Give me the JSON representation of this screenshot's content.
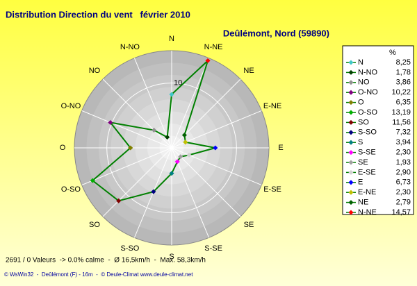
{
  "chart_data": {
    "type": "radar",
    "title": "Distribution Direction du vent   février 2010",
    "subtitle": "Deûlémont, Nord (59890)",
    "legend_header": "%",
    "categories": [
      "N",
      "N-NO",
      "NO",
      "O-NO",
      "O",
      "O-SO",
      "SO",
      "S-SO",
      "S",
      "S-SE",
      "SE",
      "E-SE",
      "E",
      "E-NE",
      "NE",
      "N-NE"
    ],
    "series": [
      {
        "color": "#008000",
        "values": [
          8.25,
          1.78,
          3.86,
          10.22,
          6.35,
          13.19,
          11.56,
          7.32,
          3.94,
          2.3,
          1.93,
          2.9,
          6.73,
          2.3,
          2.79,
          14.57
        ],
        "value_labels": [
          "8,25",
          "1,78",
          "3,86",
          "10,22",
          "6,35",
          "13,19",
          "11,56",
          "7,32",
          "3,94",
          "2,30",
          "1,93",
          "2,90",
          "6,73",
          "2,30",
          "2,79",
          "14,57"
        ],
        "marker_colors": [
          "#40c8c8",
          "#004000",
          "#909090",
          "#800080",
          "#808000",
          "#00b000",
          "#800000",
          "#000080",
          "#008080",
          "#ff00ff",
          "#a0a0a0",
          "#d0d0d0",
          "#0000ff",
          "#c0c000",
          "#006000",
          "#ff0000"
        ]
      }
    ],
    "rlim": [
      0,
      15
    ],
    "rticks": [
      10
    ],
    "footer": "2691 / 0 Valeurs  -> 0.0% calme  -  Ø 16,5km/h  -  Max. 58,3km/h",
    "credits": "© WsWin32  -  Deûlémont (F) - 16m  -  © Deule-Climat www.deule-climat.net"
  }
}
